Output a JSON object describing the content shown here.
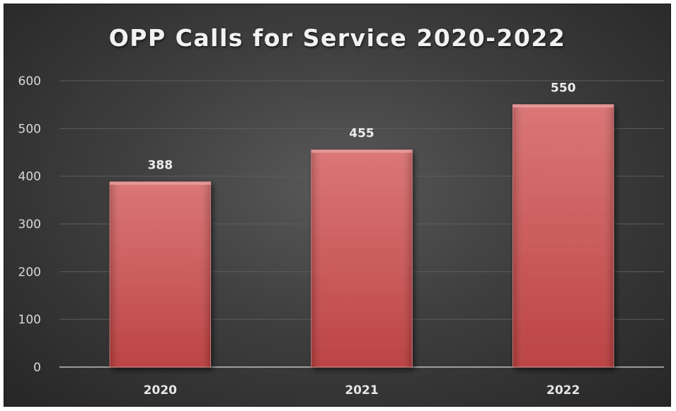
{
  "chart_data": {
    "type": "bar",
    "title": "OPP Calls for Service 2020-2022",
    "categories": [
      "2020",
      "2021",
      "2022"
    ],
    "values": [
      388,
      455,
      550
    ],
    "data_labels": [
      "388",
      "455",
      "550"
    ],
    "ylim": [
      0,
      600
    ],
    "yticks": [
      0,
      100,
      200,
      300,
      400,
      500,
      600
    ],
    "xlabel": "",
    "ylabel": "",
    "grid": true,
    "legend": "none",
    "colors": {
      "bar": "#d45454",
      "bar_light": "#d97070",
      "bar_dark": "#b93a3a",
      "grid": "#5c5c5c",
      "axis": "#bfbfbf"
    }
  }
}
